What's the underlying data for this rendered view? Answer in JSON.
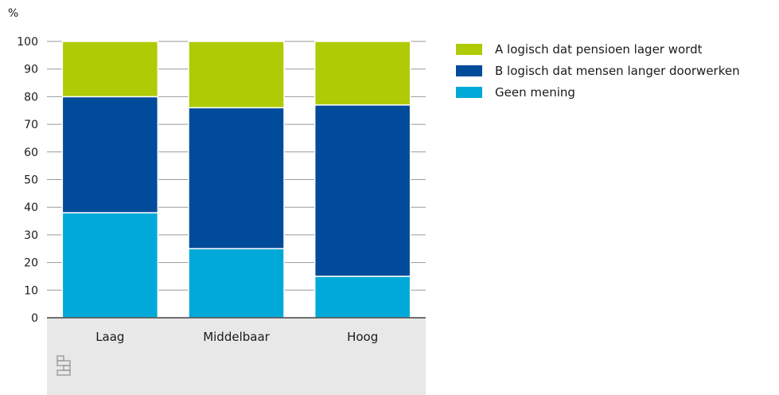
{
  "chart_data": {
    "type": "bar",
    "stacked": true,
    "unit_label": "%",
    "categories": [
      "Laag",
      "Middelbaar",
      "Hoog"
    ],
    "series": [
      {
        "name": "Geen mening",
        "values": [
          38,
          25,
          15
        ],
        "color": "#00a9d8"
      },
      {
        "name": "B logisch dat mensen langer doorwerken",
        "values": [
          42,
          51,
          62
        ],
        "color": "#004b9a"
      },
      {
        "name": "A logisch dat pensioen lager wordt",
        "values": [
          20,
          24,
          23
        ],
        "color": "#afcb05"
      }
    ],
    "legend_order": [
      2,
      1,
      0
    ],
    "legend_position": "top-right",
    "yticks": [
      0,
      10,
      20,
      30,
      40,
      50,
      60,
      70,
      80,
      90,
      100
    ],
    "ylim": [
      0,
      100
    ],
    "grid": true
  },
  "logo": {
    "icon": "cbs-logo-icon"
  }
}
